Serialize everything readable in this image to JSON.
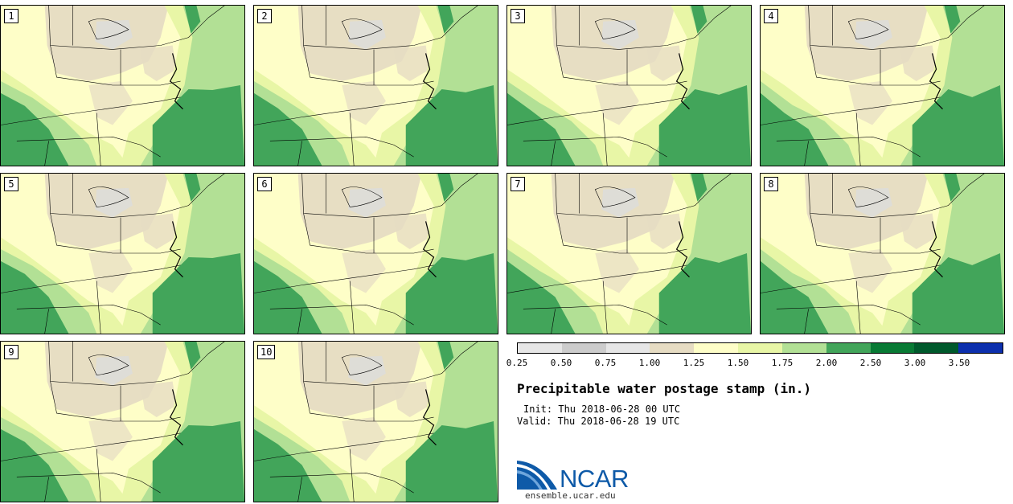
{
  "figure": {
    "title": "Precipitable water postage stamp (in.)",
    "init_label": "Init:",
    "init_value": "Thu 2018-06-28 00 UTC",
    "valid_label": "Valid:",
    "valid_value": "Thu 2018-06-28 19 UTC",
    "logo_text": "NCAR",
    "logo_url": "ensemble.ucar.edu"
  },
  "panels": [
    {
      "member": "1"
    },
    {
      "member": "2"
    },
    {
      "member": "3"
    },
    {
      "member": "4"
    },
    {
      "member": "5"
    },
    {
      "member": "6"
    },
    {
      "member": "7"
    },
    {
      "member": "8"
    },
    {
      "member": "9"
    },
    {
      "member": "10"
    }
  ],
  "colorbar": {
    "colors": [
      "#e6e6e6",
      "#cccccc",
      "#e6e6e6",
      "#e6dcc3",
      "#fefec8",
      "#e8f6a6",
      "#b2e095",
      "#42a55a",
      "#087a34",
      "#00592c",
      "#0c2fad"
    ],
    "ticks": [
      "0.25",
      "0.50",
      "0.75",
      "1.00",
      "1.25",
      "1.50",
      "1.75",
      "2.00",
      "2.50",
      "3.00",
      "3.50"
    ]
  },
  "map_colors": {
    "tan": "#e6dcc3",
    "gray": "#dcdcdc",
    "pale": "#fefec8",
    "lime": "#e8f6a6",
    "light_green": "#b2e095",
    "green": "#42a55a"
  }
}
